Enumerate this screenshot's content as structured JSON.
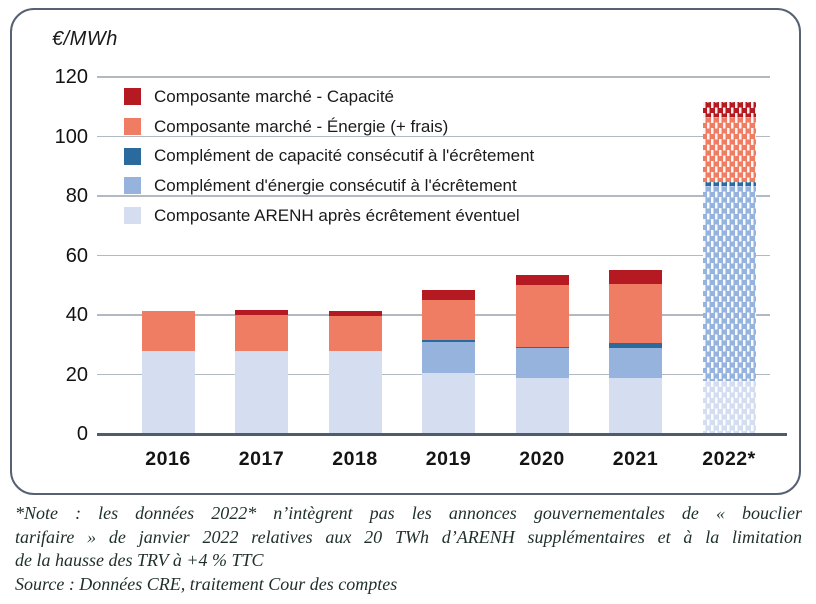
{
  "chart_data": {
    "type": "bar",
    "stacked": true,
    "title": "",
    "unit_label": "€/MWh",
    "ylim": [
      0,
      120
    ],
    "y_ticks": [
      120,
      100,
      80,
      60,
      40,
      20,
      0
    ],
    "grid": true,
    "legend_position": "top-left-inside",
    "categories": [
      "2016",
      "2017",
      "2018",
      "2019",
      "2020",
      "2021",
      "2022*"
    ],
    "forecast_category_index": 6,
    "series": [
      {
        "name": "Composante ARENH après écrêtement éventuel",
        "color": "#d5def1",
        "values": [
          28,
          28,
          28,
          20.6,
          18.8,
          18.8,
          17.8
        ]
      },
      {
        "name": "Complément d'énergie consécutif à l'écrêtement",
        "color": "#95b3dc",
        "values": [
          0,
          0,
          0,
          10.4,
          10.0,
          10.2,
          65.6
        ]
      },
      {
        "name": "Complément de capacité consécutif à l'écrêtement",
        "color": "#2b6a9d",
        "values": [
          0,
          0,
          0,
          0.6,
          0.5,
          1.6,
          1.2
        ]
      },
      {
        "name": "Composante marché - Énergie (+ frais)",
        "color": "#ee7d63",
        "values": [
          13.3,
          12.0,
          11.8,
          13.3,
          20.7,
          19.9,
          21.9
        ]
      },
      {
        "name": "Composante marché - Capacité",
        "color": "#b51a22",
        "values": [
          0,
          1.7,
          1.4,
          3.4,
          3.4,
          4.5,
          5.0
        ]
      }
    ],
    "legend": [
      {
        "label": "Composante marché - Capacité",
        "color": "#b51a22"
      },
      {
        "label": "Composante marché - Énergie (+ frais)",
        "color": "#ee7d63"
      },
      {
        "label": "Complément de capacité consécutif à l'écrêtement",
        "color": "#2b6a9d"
      },
      {
        "label": "Complément d'énergie consécutif à l'écrêtement",
        "color": "#95b3dc"
      },
      {
        "label": "Composante ARENH après écrêtement éventuel",
        "color": "#d5def1"
      }
    ]
  },
  "note": {
    "lines": [
      "*Note : les données 2022* n’intègrent pas les annonces gouvernementales de « bouclier",
      "tarifaire » de janvier 2022 relatives aux 20 TWh d’ARENH supplémentaires et à la limitation",
      "de la hausse des TRV à +4 % TTC"
    ],
    "source": "Source : Données CRE, traitement Cour des comptes"
  },
  "colors": {
    "grid": "#b3b9c2",
    "axis": "#4f5c6b",
    "frame_border": "#566273",
    "note_text": "#1f3028"
  }
}
